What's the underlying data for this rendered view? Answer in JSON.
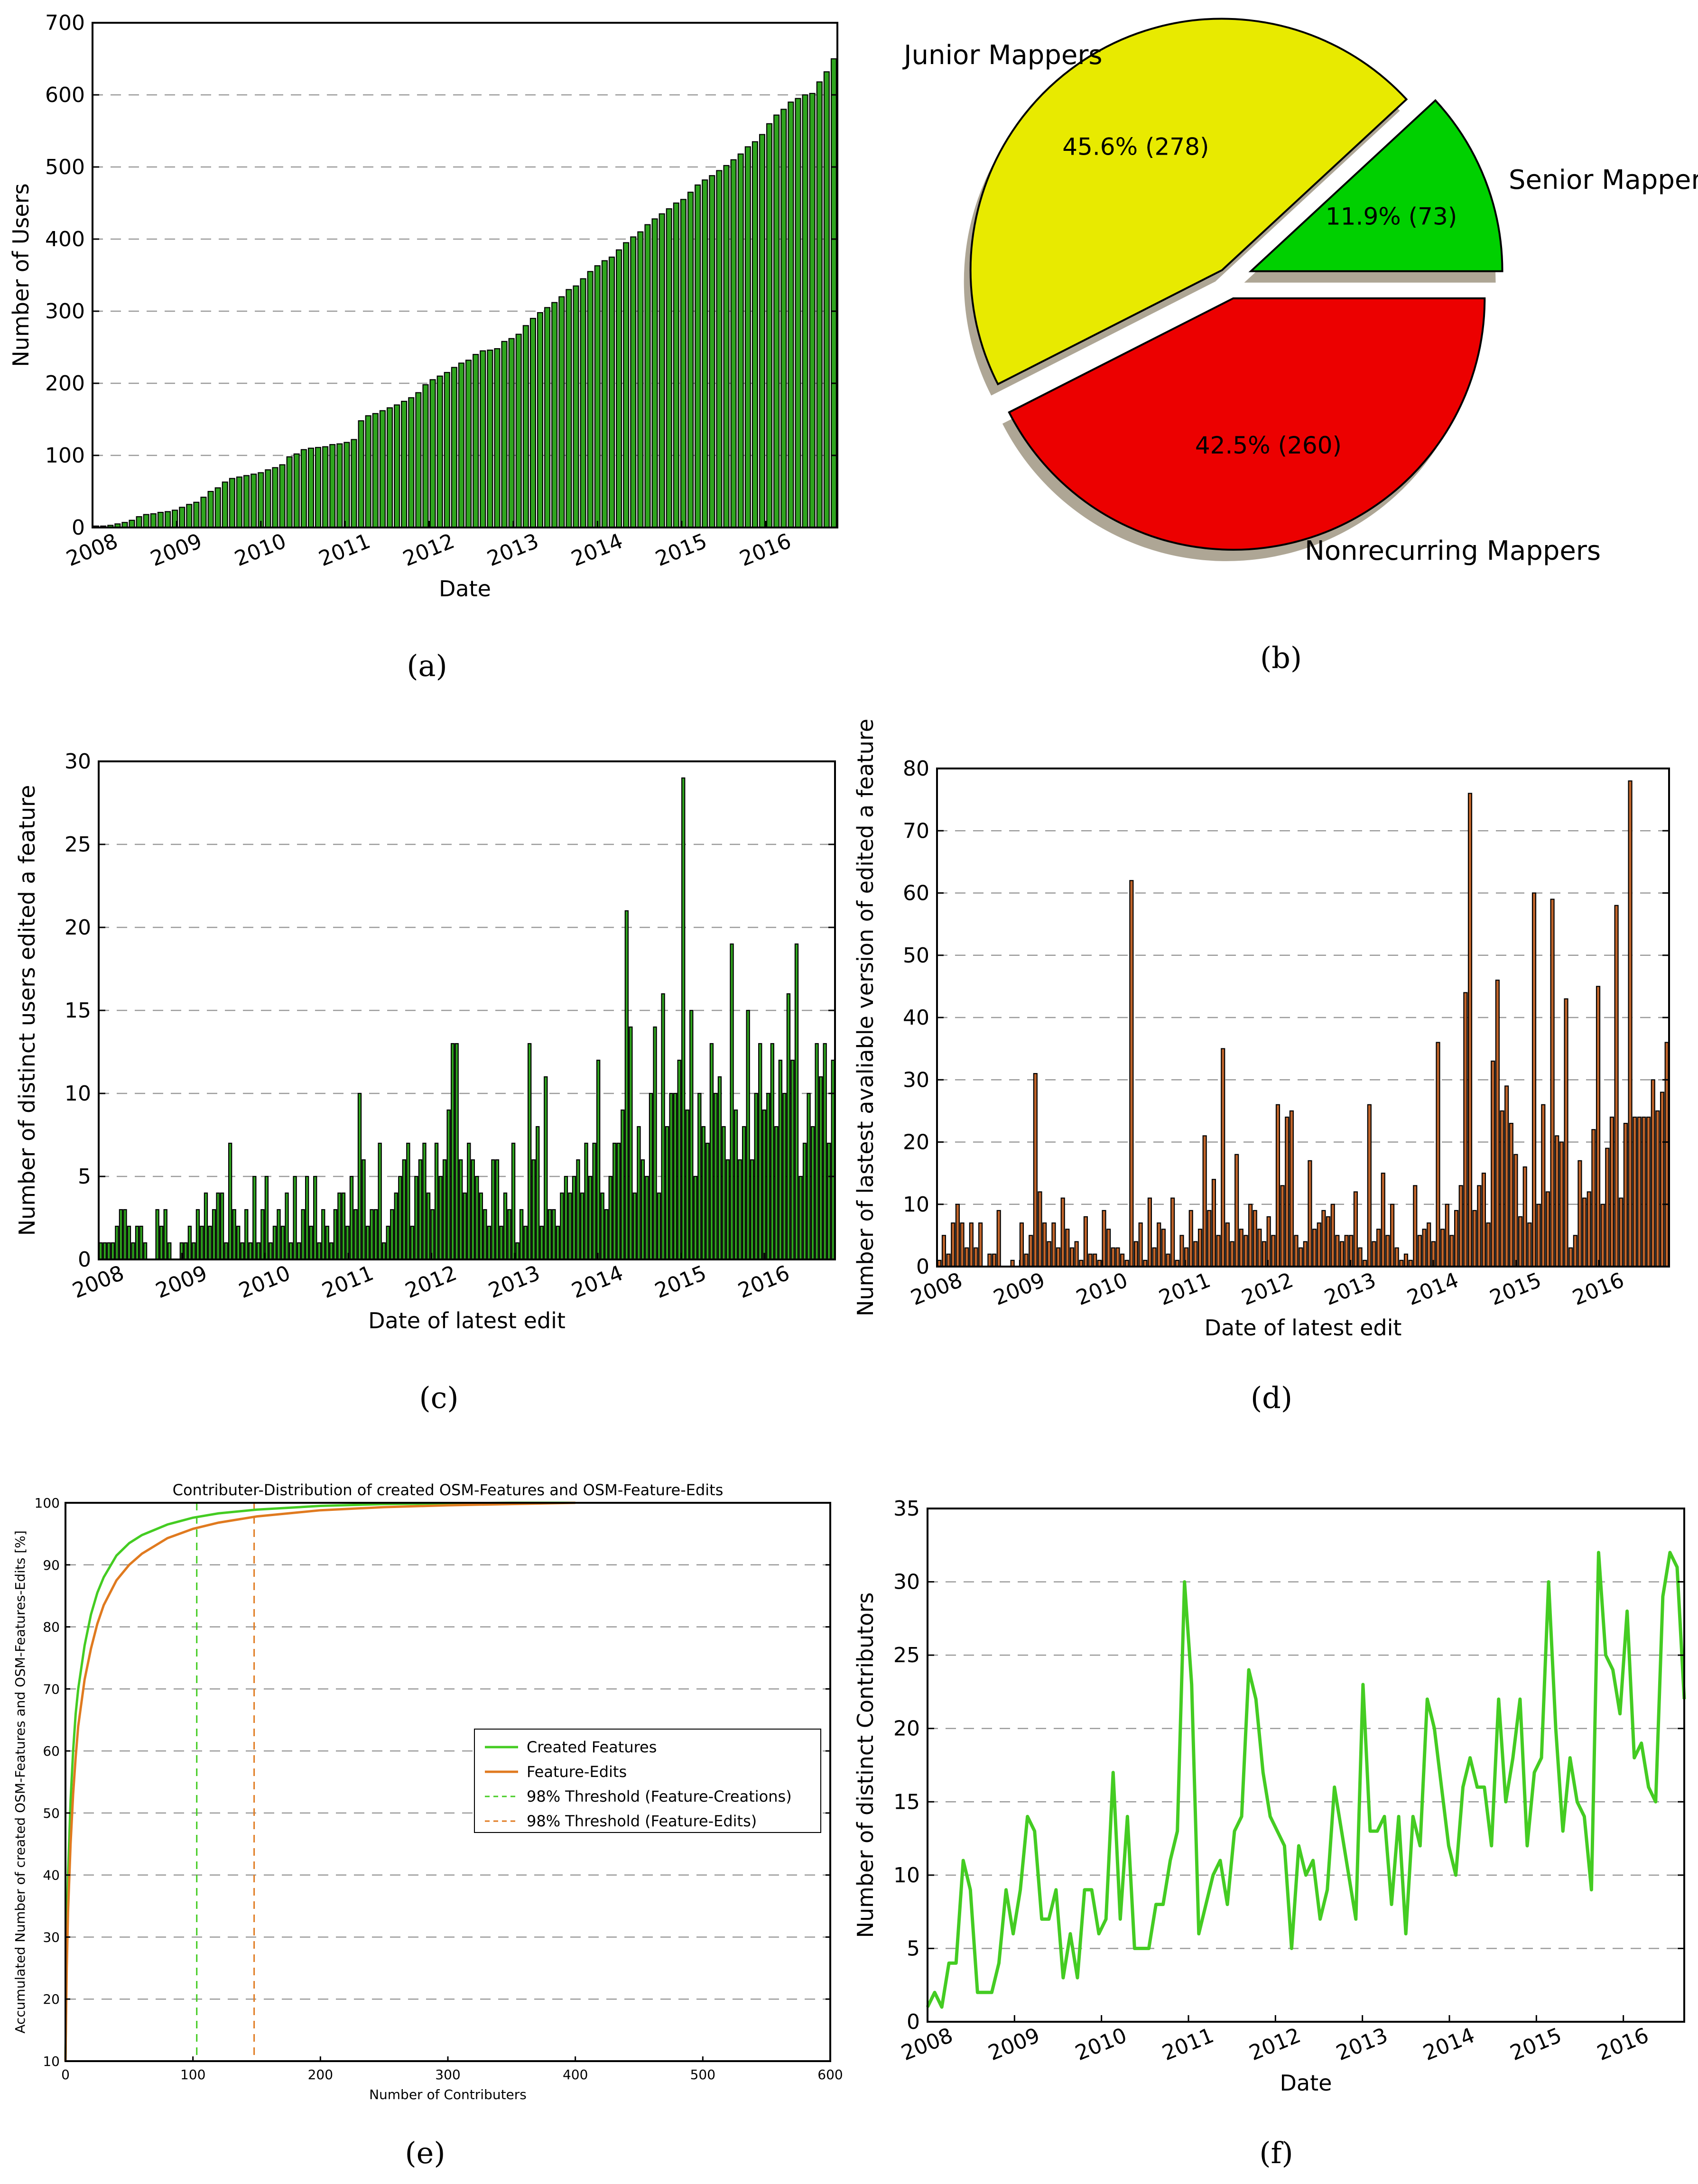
{
  "captions": {
    "a": "(a)",
    "b": "(b)",
    "c": "(c)",
    "d": "(d)",
    "e": "(e)",
    "f": "(f)"
  },
  "chart_data": [
    {
      "id": "a",
      "type": "bar",
      "xlabel": "Date",
      "ylabel": "Number of Users",
      "ylim": [
        0,
        700
      ],
      "yticks": [
        0,
        100,
        200,
        300,
        400,
        500,
        600,
        700
      ],
      "xtick_labels": [
        "2008",
        "2009",
        "2010",
        "2011",
        "2012",
        "2013",
        "2014",
        "2015",
        "2016"
      ],
      "x_range_years": [
        2008.0,
        2016.85
      ],
      "bar_color": "#2fa51e",
      "values": [
        2,
        2,
        3,
        5,
        7,
        10,
        15,
        18,
        19,
        21,
        22,
        24,
        28,
        32,
        35,
        42,
        50,
        55,
        63,
        68,
        70,
        72,
        74,
        76,
        80,
        83,
        87,
        98,
        102,
        108,
        110,
        111,
        112,
        115,
        116,
        118,
        122,
        148,
        155,
        158,
        162,
        166,
        170,
        175,
        180,
        187,
        198,
        205,
        210,
        215,
        222,
        228,
        232,
        240,
        245,
        246,
        248,
        258,
        262,
        268,
        280,
        290,
        298,
        305,
        312,
        320,
        330,
        335,
        345,
        355,
        363,
        370,
        375,
        385,
        395,
        403,
        410,
        420,
        428,
        435,
        442,
        450,
        455,
        465,
        475,
        482,
        488,
        495,
        502,
        510,
        518,
        528,
        535,
        545,
        560,
        572,
        580,
        590,
        595,
        600,
        602,
        618,
        632,
        650
      ]
    },
    {
      "id": "b",
      "type": "pie",
      "slices": [
        {
          "label": "Junior Mappers",
          "percent": 45.6,
          "count": 278,
          "color": "#e8ea00"
        },
        {
          "label": "Senior Mappers",
          "percent": 11.9,
          "count": 73,
          "color": "#00d000"
        },
        {
          "label": "Nonrecurring Mappers",
          "percent": 42.5,
          "count": 260,
          "color": "#ec0000"
        }
      ],
      "exploded": true,
      "shadow": true
    },
    {
      "id": "c",
      "type": "bar",
      "xlabel": "Date of latest edit",
      "ylabel": "Number of distinct users edited a feature",
      "ylim": [
        0,
        30
      ],
      "yticks": [
        0,
        5,
        10,
        15,
        20,
        25,
        30
      ],
      "xtick_labels": [
        "2008",
        "2009",
        "2010",
        "2011",
        "2012",
        "2013",
        "2014",
        "2015",
        "2016"
      ],
      "x_range_years": [
        2008.0,
        2016.85
      ],
      "bar_color": "#2fa51e",
      "values": [
        1,
        1,
        1,
        1,
        2,
        3,
        3,
        2,
        1,
        2,
        2,
        1,
        0,
        0,
        3,
        2,
        3,
        1,
        0,
        0,
        1,
        1,
        2,
        1,
        3,
        2,
        4,
        2,
        3,
        4,
        4,
        1,
        7,
        3,
        2,
        1,
        3,
        1,
        5,
        1,
        3,
        5,
        1,
        2,
        3,
        2,
        4,
        1,
        5,
        1,
        3,
        5,
        2,
        5,
        1,
        3,
        2,
        1,
        3,
        4,
        4,
        2,
        5,
        3,
        10,
        6,
        2,
        3,
        3,
        7,
        1,
        2,
        3,
        4,
        5,
        6,
        7,
        2,
        5,
        6,
        7,
        4,
        3,
        7,
        5,
        6,
        9,
        13,
        13,
        6,
        4,
        7,
        6,
        5,
        4,
        3,
        2,
        6,
        6,
        2,
        4,
        3,
        7,
        1,
        3,
        2,
        13,
        6,
        8,
        2,
        11,
        3,
        3,
        2,
        4,
        5,
        4,
        5,
        6,
        4,
        7,
        5,
        7,
        12,
        4,
        3,
        5,
        7,
        7,
        9,
        21,
        14,
        4,
        8,
        6,
        5,
        10,
        14,
        4,
        16,
        8,
        10,
        10,
        12,
        29,
        9,
        15,
        5,
        10,
        8,
        7,
        13,
        10,
        11,
        8,
        6,
        19,
        9,
        6,
        8,
        15,
        6,
        10,
        13,
        9,
        10,
        13,
        8,
        12,
        10,
        16,
        12,
        19,
        5,
        7,
        10,
        8,
        13,
        11,
        13,
        7,
        12
      ]
    },
    {
      "id": "d",
      "type": "bar",
      "xlabel": "Date of latest edit",
      "ylabel": "Number of lastest avaliable version of edited a feature",
      "ylim": [
        0,
        80
      ],
      "yticks": [
        0,
        10,
        20,
        30,
        40,
        50,
        60,
        70,
        80
      ],
      "xtick_labels": [
        "2008",
        "2009",
        "2010",
        "2011",
        "2012",
        "2013",
        "2014",
        "2015",
        "2016"
      ],
      "x_range_years": [
        2008.0,
        2016.85
      ],
      "bar_color": "#c0642a",
      "values": [
        1,
        5,
        2,
        7,
        10,
        7,
        3,
        7,
        3,
        7,
        0,
        2,
        2,
        9,
        0,
        0,
        1,
        0,
        7,
        2,
        5,
        31,
        12,
        7,
        4,
        7,
        3,
        11,
        6,
        3,
        4,
        1,
        8,
        2,
        2,
        1,
        9,
        6,
        3,
        3,
        2,
        1,
        62,
        4,
        7,
        1,
        11,
        3,
        7,
        6,
        2,
        11,
        1,
        5,
        3,
        9,
        4,
        6,
        21,
        9,
        14,
        5,
        35,
        7,
        4,
        18,
        6,
        5,
        10,
        9,
        6,
        4,
        8,
        5,
        26,
        13,
        24,
        25,
        5,
        3,
        4,
        17,
        6,
        7,
        9,
        8,
        10,
        5,
        4,
        5,
        5,
        12,
        3,
        1,
        26,
        4,
        6,
        15,
        5,
        10,
        3,
        1,
        2,
        1,
        13,
        5,
        6,
        7,
        4,
        36,
        6,
        10,
        5,
        9,
        13,
        44,
        76,
        9,
        13,
        15,
        7,
        33,
        46,
        25,
        29,
        23,
        18,
        8,
        16,
        7,
        60,
        10,
        26,
        12,
        59,
        21,
        20,
        43,
        3,
        5,
        17,
        11,
        12,
        22,
        45,
        10,
        19,
        24,
        58,
        11,
        23,
        78,
        24,
        24,
        24,
        24,
        30,
        25,
        28,
        36
      ]
    },
    {
      "id": "e",
      "type": "line",
      "title": "Contributer-Distribution of created OSM-Features and OSM-Feature-Edits",
      "xlabel": "Number of Contributers",
      "ylabel": "Accumulated Number of created OSM-Features and OSM-Features-Edits [%]",
      "xlim": [
        0,
        600
      ],
      "ylim": [
        10,
        100
      ],
      "xticks": [
        0,
        100,
        200,
        300,
        400,
        500,
        600
      ],
      "yticks": [
        10,
        20,
        30,
        40,
        50,
        60,
        70,
        80,
        90,
        100
      ],
      "series": [
        {
          "name": "Created Features",
          "color": "#44cc22",
          "x": [
            0,
            1,
            2,
            4,
            6,
            8,
            10,
            15,
            20,
            25,
            30,
            40,
            50,
            60,
            80,
            100,
            120,
            150,
            200,
            250,
            300,
            350,
            400
          ],
          "y": [
            10,
            30,
            40,
            52,
            60,
            66,
            70,
            77,
            82,
            85.5,
            88,
            91.5,
            93.5,
            94.8,
            96.5,
            97.6,
            98.3,
            98.9,
            99.5,
            99.8,
            99.9,
            100,
            100
          ]
        },
        {
          "name": "Feature-Edits",
          "color": "#e07a1f",
          "x": [
            0,
            1,
            2,
            4,
            6,
            8,
            10,
            15,
            20,
            25,
            30,
            40,
            50,
            60,
            80,
            100,
            120,
            150,
            200,
            250,
            300,
            350,
            400
          ],
          "y": [
            10,
            25,
            34,
            45,
            53,
            59,
            64,
            71.5,
            76.5,
            80.5,
            83.5,
            87.5,
            90,
            91.8,
            94.3,
            95.8,
            96.8,
            97.8,
            98.8,
            99.3,
            99.6,
            99.8,
            100
          ]
        }
      ],
      "thresholds": [
        {
          "name": "98% Threshold (Feature-Creations)",
          "x": 103,
          "color": "#44cc22"
        },
        {
          "name": "98% Threshold (Feature-Edits)",
          "x": 148,
          "color": "#e07a1f"
        }
      ],
      "legend": [
        "Created Features",
        "Feature-Edits",
        "98% Threshold (Feature-Creations)",
        "98% Threshold (Feature-Edits)"
      ],
      "legend_placement": "center-right"
    },
    {
      "id": "f",
      "type": "line",
      "xlabel": "Date",
      "ylabel": "Number of distinct Contributors",
      "ylim": [
        0,
        35
      ],
      "yticks": [
        0,
        5,
        10,
        15,
        20,
        25,
        30,
        35
      ],
      "xtick_labels": [
        "2008",
        "2009",
        "2010",
        "2011",
        "2012",
        "2013",
        "2014",
        "2015",
        "2016"
      ],
      "x_range_years": [
        2008.0,
        2016.7
      ],
      "color": "#44cc22",
      "values": [
        1,
        2,
        1,
        4,
        4,
        11,
        9,
        2,
        2,
        2,
        4,
        9,
        6,
        9,
        14,
        13,
        7,
        7,
        9,
        3,
        6,
        3,
        9,
        9,
        6,
        7,
        17,
        7,
        14,
        5,
        5,
        5,
        8,
        8,
        11,
        13,
        30,
        23,
        6,
        8,
        10,
        11,
        8,
        13,
        14,
        24,
        22,
        17,
        14,
        13,
        12,
        5,
        12,
        10,
        11,
        7,
        9,
        16,
        13,
        10,
        7,
        23,
        13,
        13,
        14,
        8,
        14,
        6,
        14,
        12,
        22,
        20,
        16,
        12,
        10,
        16,
        18,
        16,
        16,
        12,
        22,
        15,
        18,
        22,
        12,
        17,
        18,
        30,
        20,
        13,
        18,
        15,
        14,
        9,
        32,
        25,
        24,
        21,
        28,
        18,
        19,
        16,
        15,
        29,
        32,
        31,
        22
      ]
    }
  ]
}
